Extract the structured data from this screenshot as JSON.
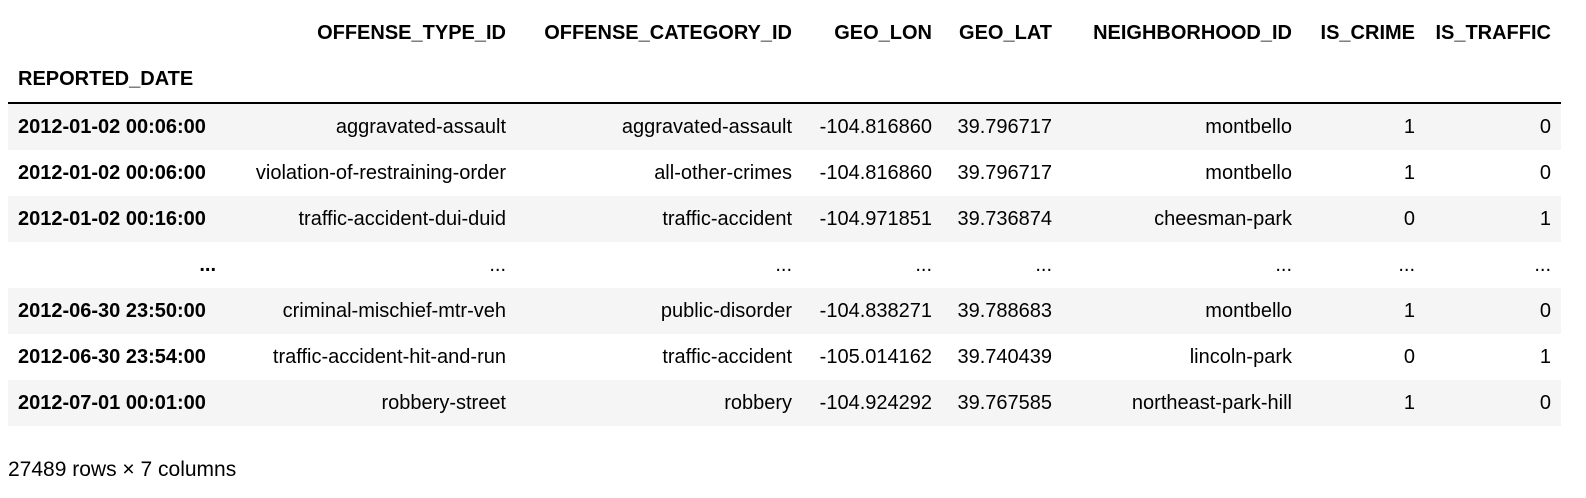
{
  "dataframe": {
    "columns": [
      "OFFENSE_TYPE_ID",
      "OFFENSE_CATEGORY_ID",
      "GEO_LON",
      "GEO_LAT",
      "NEIGHBORHOOD_ID",
      "IS_CRIME",
      "IS_TRAFFIC"
    ],
    "index_name": "REPORTED_DATE",
    "rows": [
      {
        "index": "2012-01-02 00:06:00",
        "cells": [
          "aggravated-assault",
          "aggravated-assault",
          "-104.816860",
          "39.796717",
          "montbello",
          "1",
          "0"
        ]
      },
      {
        "index": "2012-01-02 00:06:00",
        "cells": [
          "violation-of-restraining-order",
          "all-other-crimes",
          "-104.816860",
          "39.796717",
          "montbello",
          "1",
          "0"
        ]
      },
      {
        "index": "2012-01-02 00:16:00",
        "cells": [
          "traffic-accident-dui-duid",
          "traffic-accident",
          "-104.971851",
          "39.736874",
          "cheesman-park",
          "0",
          "1"
        ]
      },
      {
        "index": "...",
        "cells": [
          "...",
          "...",
          "...",
          "...",
          "...",
          "...",
          "..."
        ]
      },
      {
        "index": "2012-06-30 23:50:00",
        "cells": [
          "criminal-mischief-mtr-veh",
          "public-disorder",
          "-104.838271",
          "39.788683",
          "montbello",
          "1",
          "0"
        ]
      },
      {
        "index": "2012-06-30 23:54:00",
        "cells": [
          "traffic-accident-hit-and-run",
          "traffic-accident",
          "-105.014162",
          "39.740439",
          "lincoln-park",
          "0",
          "1"
        ]
      },
      {
        "index": "2012-07-01 00:01:00",
        "cells": [
          "robbery-street",
          "robbery",
          "-104.924292",
          "39.767585",
          "northeast-park-hill",
          "1",
          "0"
        ]
      }
    ],
    "shape_text": "27489 rows × 7 columns"
  }
}
